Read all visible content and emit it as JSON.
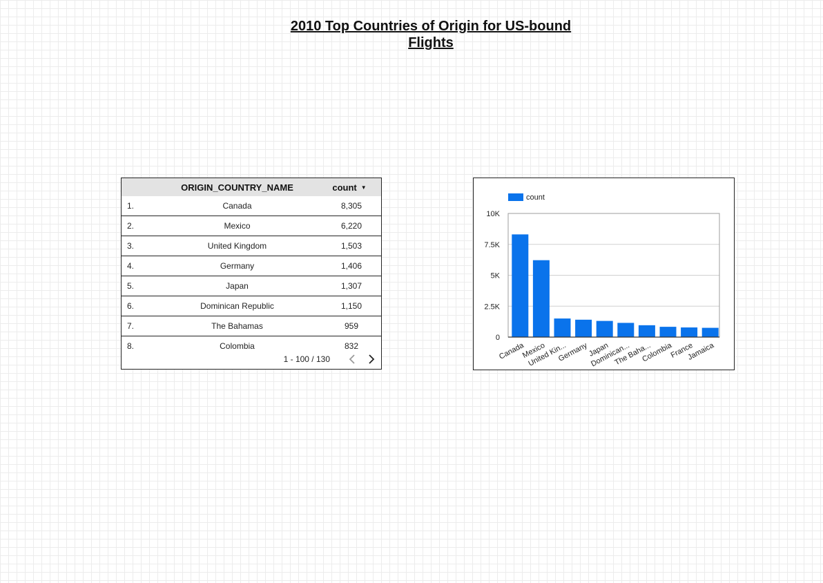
{
  "page": {
    "title_line1": "2010 Top Countries of Origin for US-bound",
    "title_line2": "Flights"
  },
  "table": {
    "headers": {
      "name": "ORIGIN_COUNTRY_NAME",
      "count": "count"
    },
    "sort_icon": "sort-descending-icon",
    "rows": [
      {
        "index": "1.",
        "name": "Canada",
        "count": "8,305"
      },
      {
        "index": "2.",
        "name": "Mexico",
        "count": "6,220"
      },
      {
        "index": "3.",
        "name": "United Kingdom",
        "count": "1,503"
      },
      {
        "index": "4.",
        "name": "Germany",
        "count": "1,406"
      },
      {
        "index": "5.",
        "name": "Japan",
        "count": "1,307"
      },
      {
        "index": "6.",
        "name": "Dominican Republic",
        "count": "1,150"
      },
      {
        "index": "7.",
        "name": "The Bahamas",
        "count": "959"
      },
      {
        "index": "8.",
        "name": "Colombia",
        "count": "832"
      }
    ],
    "pagination": "1 - 100 / 130"
  },
  "chart_data": {
    "type": "bar",
    "categories": [
      "Canada",
      "Mexico",
      "United Kin...",
      "Germany",
      "Japan",
      "Dominican...",
      "The Baha...",
      "Colombia",
      "France",
      "Jamaica"
    ],
    "series": [
      {
        "name": "count",
        "values": [
          8305,
          6220,
          1503,
          1406,
          1307,
          1150,
          959,
          832,
          780,
          750
        ],
        "color": "#0a73eb"
      }
    ],
    "ylim": [
      0,
      10000
    ],
    "yticks": [
      0,
      2500,
      5000,
      7500,
      10000
    ],
    "ytick_labels": [
      "0",
      "2.5K",
      "5K",
      "7.5K",
      "10K"
    ],
    "grid": true,
    "legend": "top-left"
  }
}
